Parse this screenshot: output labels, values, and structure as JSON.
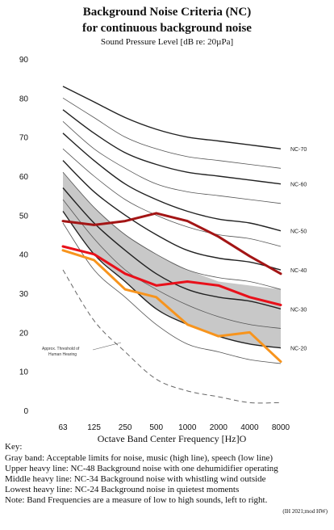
{
  "chart_data": {
    "type": "line",
    "title": "Background Noise Criteria (NC)",
    "title_line2": "for continuous background noise",
    "ylabel": "Sound Pressure Level [dB re: 20µPa]",
    "xlabel": "Octave Band Center Frequency [Hz]O",
    "categories": [
      "63",
      "125",
      "250",
      "500",
      "1000",
      "2000",
      "4000",
      "8000"
    ],
    "ylim": [
      0,
      90
    ],
    "yticks": [
      0,
      10,
      20,
      30,
      40,
      50,
      60,
      70,
      80,
      90
    ],
    "grid": false,
    "nc_curves": [
      {
        "label": "NC-70",
        "values": [
          83,
          79,
          75,
          72,
          70,
          69,
          68,
          67
        ]
      },
      {
        "label": "",
        "values": [
          80,
          75,
          70,
          67,
          65,
          64,
          63,
          62
        ]
      },
      {
        "label": "NC-60",
        "values": [
          77,
          71,
          66,
          63,
          61,
          60,
          59,
          58
        ]
      },
      {
        "label": "",
        "values": [
          74,
          67,
          62,
          58,
          56,
          55,
          54,
          53
        ]
      },
      {
        "label": "NC-50",
        "values": [
          71,
          64,
          58,
          54,
          51,
          49,
          48,
          46
        ]
      },
      {
        "label": "",
        "values": [
          67,
          60,
          54,
          50,
          47,
          45,
          44,
          42
        ]
      },
      {
        "label": "NC-40",
        "values": [
          64,
          56,
          50,
          45,
          41,
          39,
          38,
          36
        ]
      },
      {
        "label": "",
        "values": [
          61,
          52,
          45,
          40,
          36,
          34,
          33,
          31
        ]
      },
      {
        "label": "NC-30",
        "values": [
          57,
          48,
          41,
          35,
          31,
          29,
          28,
          26
        ]
      },
      {
        "label": "",
        "values": [
          54,
          44,
          36,
          31,
          27,
          24,
          22,
          21
        ]
      },
      {
        "label": "NC-20",
        "values": [
          51,
          40,
          33,
          26,
          22,
          19,
          17,
          16
        ]
      },
      {
        "label": "",
        "values": [
          48,
          36,
          29,
          22,
          17,
          15,
          13,
          12
        ]
      }
    ],
    "gray_band": {
      "upper": [
        61,
        52,
        45,
        40,
        36,
        33,
        32,
        31
      ],
      "lower": [
        51,
        40,
        33,
        26,
        22,
        19,
        17,
        16
      ]
    },
    "threshold": {
      "label_line1": "Approx. Threshold of",
      "label_line2": "Human Hearing",
      "values": [
        36,
        23,
        15,
        8,
        5,
        3.5,
        2,
        2
      ]
    },
    "series": [
      {
        "color": "#a31515",
        "values": [
          48.5,
          47.5,
          48.5,
          50.5,
          48.5,
          44.5,
          39.5,
          35
        ]
      },
      {
        "color": "#e8101a",
        "values": [
          42,
          40,
          35,
          32,
          33,
          32,
          29,
          27
        ]
      },
      {
        "color": "#f7941d",
        "values": [
          41,
          38.5,
          31,
          29,
          22,
          19,
          20,
          12.5
        ]
      }
    ]
  },
  "key": {
    "heading": "Key:",
    "lines": [
      "Gray band: Acceptable limits for noise, music (high line), speech (low line)",
      "Upper heavy line: NC-48 Background noise with one dehumidifier operating",
      "Middle heavy line: NC-34 Background noise with whistling wind outside",
      "Lowest heavy line: NC-24 Background noise in quietest moments",
      "Note: Band Frequencies are a measure of low to high sounds, left to right."
    ],
    "credit": "(IH 2021;mod HW)"
  }
}
